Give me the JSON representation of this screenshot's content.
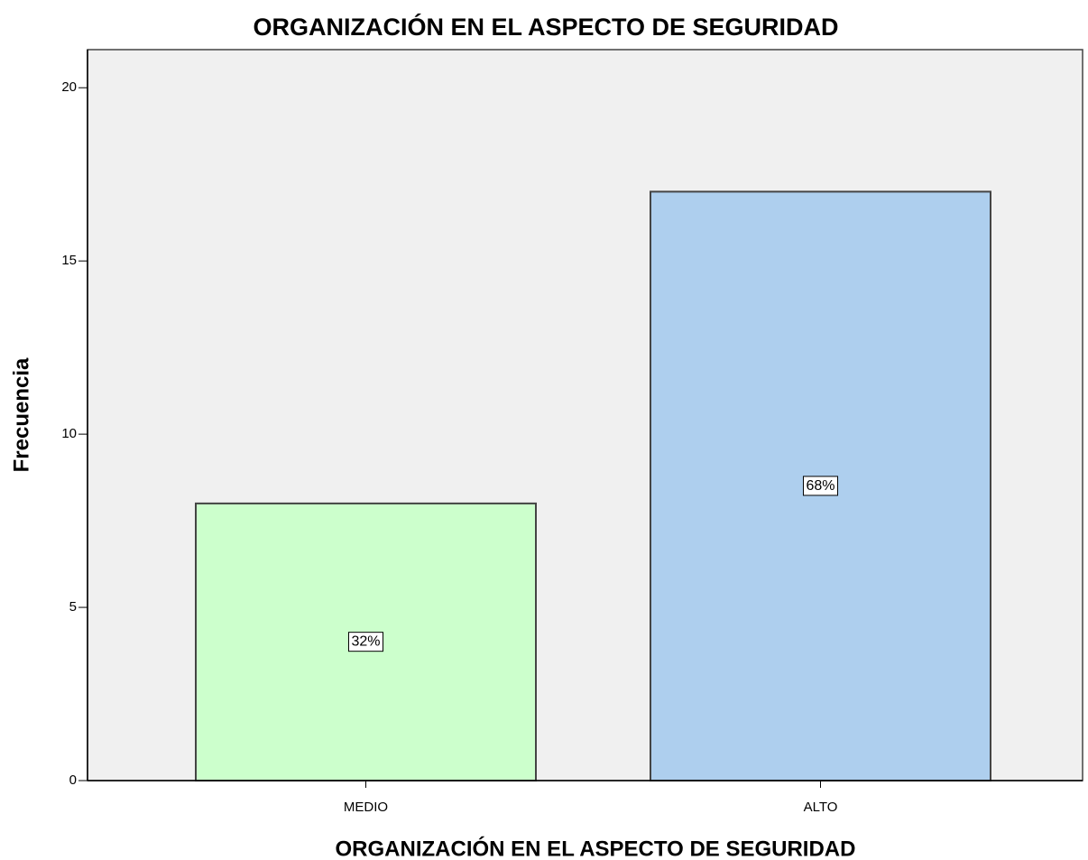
{
  "chart_data": {
    "type": "bar",
    "title": "ORGANIZACIÓN EN EL ASPECTO DE SEGURIDAD",
    "x_label": "ORGANIZACIÓN EN EL ASPECTO DE SEGURIDAD",
    "y_label": "Frecuencia",
    "categories": [
      "MEDIO",
      "ALTO"
    ],
    "values": [
      8,
      17
    ],
    "bar_labels": [
      "32%",
      "68%"
    ],
    "colors": [
      "#ccffcc",
      "#aecfee"
    ],
    "ylim": [
      0,
      21.1
    ],
    "yticks": [
      0,
      5,
      10,
      15,
      20
    ]
  }
}
